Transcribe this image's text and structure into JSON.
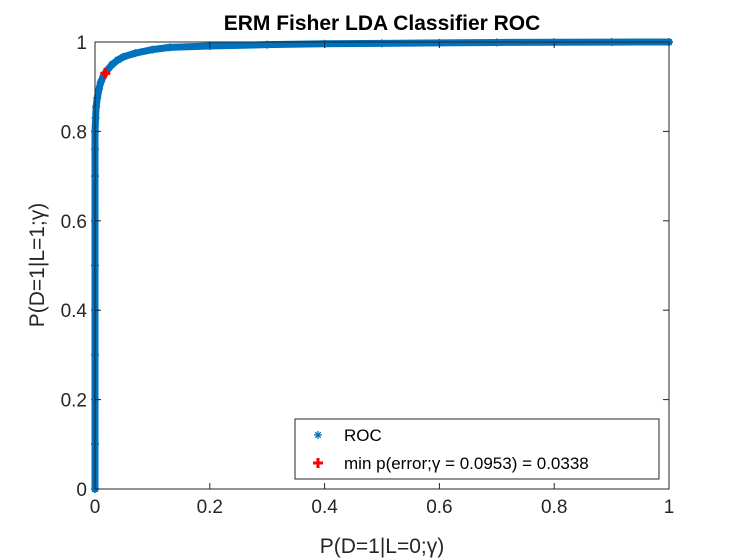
{
  "chart_data": {
    "type": "scatter",
    "title": "ERM Fisher LDA Classifier ROC",
    "xlabel": "P(D=1|L=0;γ)",
    "ylabel": "P(D=1|L=1;γ)",
    "xlim": [
      0,
      1
    ],
    "ylim": [
      0,
      1
    ],
    "xticks": [
      "0",
      "0.2",
      "0.4",
      "0.6",
      "0.8",
      "1"
    ],
    "yticks": [
      "0",
      "0.2",
      "0.4",
      "0.6",
      "0.8",
      "1"
    ],
    "grid": false,
    "legend_position": "bottom-right",
    "series": [
      {
        "name": "ROC",
        "marker": "asterisk",
        "color": "#0072BD",
        "x": [
          0,
          0,
          0,
          0,
          0,
          0,
          0,
          0,
          0,
          0,
          0.001,
          0.002,
          0.004,
          0.007,
          0.01,
          0.015,
          0.02,
          0.03,
          0.04,
          0.05,
          0.07,
          0.1,
          0.13,
          0.2,
          0.3,
          0.4,
          0.5,
          0.6,
          0.7,
          0.8,
          0.9,
          1.0
        ],
        "y": [
          0,
          0.1,
          0.2,
          0.3,
          0.4,
          0.5,
          0.6,
          0.7,
          0.76,
          0.8,
          0.83,
          0.855,
          0.875,
          0.895,
          0.91,
          0.925,
          0.935,
          0.95,
          0.96,
          0.967,
          0.975,
          0.983,
          0.988,
          0.991,
          0.994,
          0.996,
          0.997,
          0.998,
          0.999,
          0.9995,
          0.9998,
          1.0
        ]
      },
      {
        "name": "min p(error;γ = 0.0953) = 0.0338",
        "marker": "plus",
        "color": "#FF0000",
        "x": [
          0.018
        ],
        "y": [
          0.93
        ]
      }
    ]
  }
}
